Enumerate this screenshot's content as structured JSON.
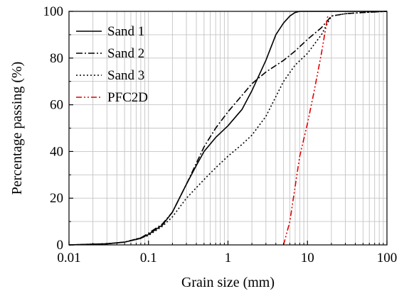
{
  "chart_data": {
    "type": "line",
    "xlabel": "Grain size (mm)",
    "ylabel": "Percentage passing (%)",
    "xscale": "log",
    "xlim": [
      0.01,
      100
    ],
    "ylim": [
      0,
      100
    ],
    "x_ticks": [
      "0.01",
      "0.1",
      "1",
      "10",
      "100"
    ],
    "y_ticks": [
      "0",
      "20",
      "40",
      "60",
      "80",
      "100"
    ],
    "grid": true,
    "legend_position": "top-left",
    "series": [
      {
        "name": "Sand 1",
        "color": "#000000",
        "style": "solid",
        "x": [
          0.01,
          0.03,
          0.05,
          0.08,
          0.1,
          0.15,
          0.2,
          0.3,
          0.4,
          0.5,
          0.7,
          1,
          1.5,
          2,
          3,
          4,
          5,
          6,
          7,
          8,
          9,
          10,
          20,
          100
        ],
        "y": [
          0,
          0.5,
          1.2,
          2.8,
          4.5,
          8.5,
          14,
          26,
          34,
          40,
          46,
          51,
          58,
          66,
          79,
          90,
          95,
          98,
          99.5,
          100,
          100,
          100,
          100,
          100
        ]
      },
      {
        "name": "Sand 2",
        "color": "#000000",
        "style": "dashdot",
        "x": [
          0.01,
          0.03,
          0.05,
          0.08,
          0.1,
          0.15,
          0.2,
          0.3,
          0.5,
          0.7,
          1,
          1.5,
          2,
          3,
          5,
          7,
          10,
          15,
          20,
          30,
          50,
          100
        ],
        "y": [
          0,
          0.5,
          1.2,
          3,
          5,
          9,
          14,
          26,
          42,
          50,
          57,
          64,
          69,
          74,
          79,
          83,
          88,
          93,
          98,
          99,
          99.5,
          100
        ]
      },
      {
        "name": "Sand 3",
        "color": "#000000",
        "style": "dotted",
        "x": [
          0.01,
          0.03,
          0.05,
          0.08,
          0.1,
          0.15,
          0.2,
          0.3,
          0.5,
          0.7,
          1,
          1.5,
          2,
          3,
          5,
          7,
          10,
          15,
          20,
          30,
          50,
          100
        ],
        "y": [
          0,
          0.5,
          1.2,
          3,
          4,
          8,
          12,
          20,
          28,
          33,
          38,
          43,
          47,
          55,
          70,
          77,
          82,
          90,
          98,
          99,
          99.5,
          100
        ]
      },
      {
        "name": "PFC2D",
        "color": "#e00000",
        "style": "dashdotdot",
        "x": [
          5,
          6,
          7,
          8,
          10,
          12,
          15,
          18
        ],
        "y": [
          0,
          10,
          25,
          38,
          52,
          65,
          82,
          98
        ]
      }
    ]
  }
}
